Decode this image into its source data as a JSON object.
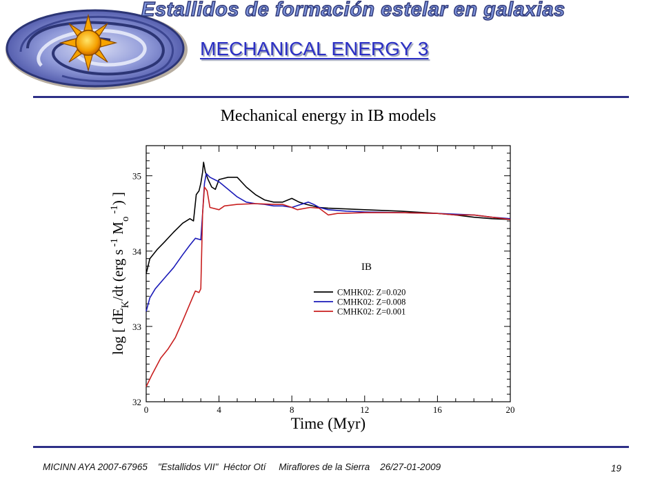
{
  "header": {
    "banner": "Estallidos de formación estelar en galaxias",
    "title": "MECHANICAL ENERGY 3"
  },
  "footer": {
    "text": "MICINN AYA 2007-67965    \"Estallidos VII\"  Héctor Otí     Miraflores de la Sierra    26/27-01-2009",
    "page": "19"
  },
  "colors": {
    "accent": "#2b2fc4",
    "rule": "#2d2f87",
    "z020": "#000000",
    "z008": "#1a1ab8",
    "z001": "#c81e1e"
  },
  "icons": {
    "logo": "spiral-galaxy-sun-icon"
  },
  "chart_data": {
    "type": "line",
    "title": "Mechanical energy in IB models",
    "xlabel": "Time (Myr)",
    "ylabel": "log [ dE_K/dt (erg s^-1 M_o^-1) ]",
    "xlim": [
      0,
      20
    ],
    "ylim": [
      32,
      35.4
    ],
    "xticks": [
      0,
      4,
      8,
      12,
      16,
      20
    ],
    "yticks": [
      32,
      33,
      34,
      35
    ],
    "annotation": "IB",
    "legend_position": "center-right",
    "grid": false,
    "series": [
      {
        "name": "CMHK02: Z=0.020",
        "color": "#000000",
        "points": [
          [
            0,
            33.7
          ],
          [
            0.2,
            33.9
          ],
          [
            0.6,
            34.02
          ],
          [
            1.0,
            34.12
          ],
          [
            1.5,
            34.25
          ],
          [
            2.0,
            34.37
          ],
          [
            2.4,
            34.43
          ],
          [
            2.6,
            34.4
          ],
          [
            2.75,
            34.75
          ],
          [
            2.9,
            34.8
          ],
          [
            3.0,
            34.9
          ],
          [
            3.1,
            35.05
          ],
          [
            3.15,
            35.18
          ],
          [
            3.25,
            35.05
          ],
          [
            3.4,
            34.95
          ],
          [
            3.6,
            34.85
          ],
          [
            3.8,
            34.82
          ],
          [
            4.0,
            34.95
          ],
          [
            4.5,
            34.98
          ],
          [
            5.0,
            34.98
          ],
          [
            5.5,
            34.85
          ],
          [
            6.0,
            34.75
          ],
          [
            6.5,
            34.68
          ],
          [
            7.0,
            34.65
          ],
          [
            7.5,
            34.65
          ],
          [
            8.0,
            34.7
          ],
          [
            8.4,
            34.65
          ],
          [
            8.8,
            34.62
          ],
          [
            9.5,
            34.58
          ],
          [
            10,
            34.57
          ],
          [
            12,
            34.55
          ],
          [
            14,
            34.53
          ],
          [
            16,
            34.5
          ],
          [
            17,
            34.48
          ],
          [
            18,
            34.45
          ],
          [
            19,
            34.43
          ],
          [
            20,
            34.42
          ]
        ]
      },
      {
        "name": "CMHK02: Z=0.008",
        "color": "#1a1ab8",
        "points": [
          [
            0,
            33.2
          ],
          [
            0.2,
            33.38
          ],
          [
            0.5,
            33.5
          ],
          [
            1.0,
            33.64
          ],
          [
            1.5,
            33.78
          ],
          [
            2.0,
            33.95
          ],
          [
            2.4,
            34.08
          ],
          [
            2.7,
            34.17
          ],
          [
            3.0,
            34.15
          ],
          [
            3.1,
            34.5
          ],
          [
            3.2,
            34.9
          ],
          [
            3.3,
            35.03
          ],
          [
            3.5,
            34.98
          ],
          [
            4.0,
            34.92
          ],
          [
            4.5,
            34.82
          ],
          [
            5.0,
            34.72
          ],
          [
            5.5,
            34.65
          ],
          [
            6.0,
            34.63
          ],
          [
            6.5,
            34.62
          ],
          [
            7.0,
            34.6
          ],
          [
            7.5,
            34.6
          ],
          [
            8.0,
            34.58
          ],
          [
            8.5,
            34.62
          ],
          [
            8.9,
            34.65
          ],
          [
            9.2,
            34.62
          ],
          [
            9.5,
            34.58
          ],
          [
            10,
            34.55
          ],
          [
            11,
            34.53
          ],
          [
            12,
            34.52
          ],
          [
            14,
            34.51
          ],
          [
            16,
            34.5
          ],
          [
            18,
            34.48
          ],
          [
            19,
            34.45
          ],
          [
            20,
            34.43
          ]
        ]
      },
      {
        "name": "CMHK02: Z=0.001",
        "color": "#c81e1e",
        "points": [
          [
            0,
            32.2
          ],
          [
            0.3,
            32.35
          ],
          [
            0.8,
            32.58
          ],
          [
            1.2,
            32.7
          ],
          [
            1.6,
            32.85
          ],
          [
            2.0,
            33.07
          ],
          [
            2.4,
            33.3
          ],
          [
            2.7,
            33.47
          ],
          [
            2.9,
            33.45
          ],
          [
            3.0,
            33.5
          ],
          [
            3.05,
            34.0
          ],
          [
            3.1,
            34.5
          ],
          [
            3.2,
            34.85
          ],
          [
            3.35,
            34.8
          ],
          [
            3.5,
            34.58
          ],
          [
            4.0,
            34.55
          ],
          [
            4.3,
            34.6
          ],
          [
            5.0,
            34.62
          ],
          [
            6.0,
            34.63
          ],
          [
            7.0,
            34.62
          ],
          [
            7.5,
            34.62
          ],
          [
            8.0,
            34.58
          ],
          [
            8.3,
            34.55
          ],
          [
            9.0,
            34.58
          ],
          [
            9.5,
            34.57
          ],
          [
            10.0,
            34.48
          ],
          [
            10.5,
            34.5
          ],
          [
            12,
            34.51
          ],
          [
            14,
            34.51
          ],
          [
            16,
            34.5
          ],
          [
            17,
            34.48
          ],
          [
            18,
            34.48
          ],
          [
            19,
            34.45
          ],
          [
            20,
            34.42
          ]
        ]
      }
    ]
  }
}
